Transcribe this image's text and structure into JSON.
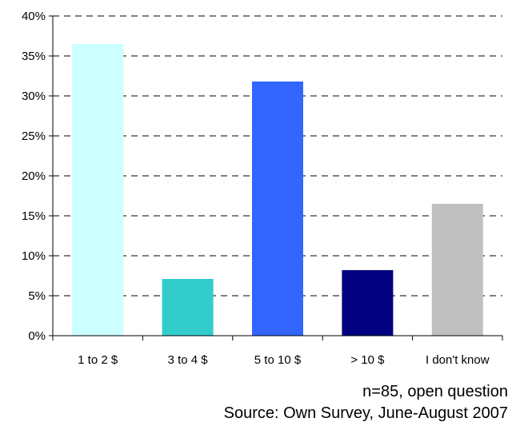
{
  "chart_data": {
    "type": "bar",
    "categories": [
      "1 to 2 $",
      "3 to 4 $",
      "5 to 10 $",
      "> 10 $",
      "I don't know"
    ],
    "values": [
      36.5,
      7.1,
      31.8,
      8.2,
      16.5
    ],
    "colors": [
      "#ccffff",
      "#33cccc",
      "#3366ff",
      "#000080",
      "#c0c0c0"
    ],
    "ylim": [
      0,
      40
    ],
    "yticks": [
      0,
      5,
      10,
      15,
      20,
      25,
      30,
      35,
      40
    ],
    "ytick_labels": [
      "0%",
      "5%",
      "10%",
      "15%",
      "20%",
      "25%",
      "30%",
      "35%",
      "40%"
    ],
    "grid": "dashed horizontal",
    "title": "",
    "xlabel": "",
    "ylabel": ""
  },
  "footnotes": {
    "sample": "n=85, open question",
    "source": "Source: Own Survey, June-August 2007"
  }
}
